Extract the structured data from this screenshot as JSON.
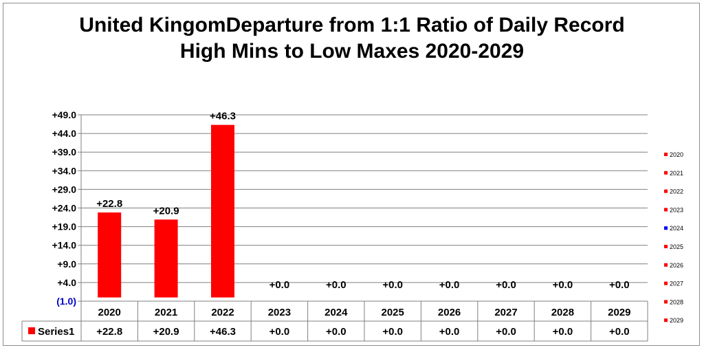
{
  "chart_data": {
    "type": "bar",
    "title_line1": "United KingomDeparture from 1:1 Ratio of Daily Record",
    "title_line2": "High Mins to Low Maxes 2020-2029",
    "categories": [
      "2020",
      "2021",
      "2022",
      "2023",
      "2024",
      "2025",
      "2026",
      "2027",
      "2028",
      "2029"
    ],
    "series": [
      {
        "name": "Series1",
        "values": [
          22.8,
          20.9,
          46.3,
          0.0,
          0.0,
          0.0,
          0.0,
          0.0,
          0.0,
          0.0
        ],
        "labels": [
          "+22.8",
          "+20.9",
          "+46.3",
          "+0.0",
          "+0.0",
          "+0.0",
          "+0.0",
          "+0.0",
          "+0.0",
          "+0.0"
        ]
      }
    ],
    "y_ticks": [
      -1.0,
      4.0,
      9.0,
      14.0,
      19.0,
      24.0,
      29.0,
      34.0,
      39.0,
      44.0,
      49.0
    ],
    "y_tick_labels": [
      "(1.0)",
      "+4.0",
      "+9.0",
      "+14.0",
      "+19.0",
      "+24.0",
      "+29.0",
      "+34.0",
      "+39.0",
      "+44.0",
      "+49.0"
    ],
    "ylim": [
      -1.0,
      49.0
    ],
    "grid": true,
    "data_table": true,
    "legend": {
      "position": "right",
      "entries": [
        "2020",
        "2021",
        "2022",
        "2023",
        "2024",
        "2025",
        "2026",
        "2027",
        "2028",
        "2029"
      ],
      "colors": [
        "#ff0000",
        "#ff0000",
        "#ff0000",
        "#ff0000",
        "#0000ff",
        "#ff0000",
        "#ff0000",
        "#ff0000",
        "#ff0000",
        "#ff0000"
      ]
    },
    "colors": {
      "bar": "#ff0000",
      "negative_tick": "#0000cc",
      "grid": "#7f7f7f"
    }
  }
}
